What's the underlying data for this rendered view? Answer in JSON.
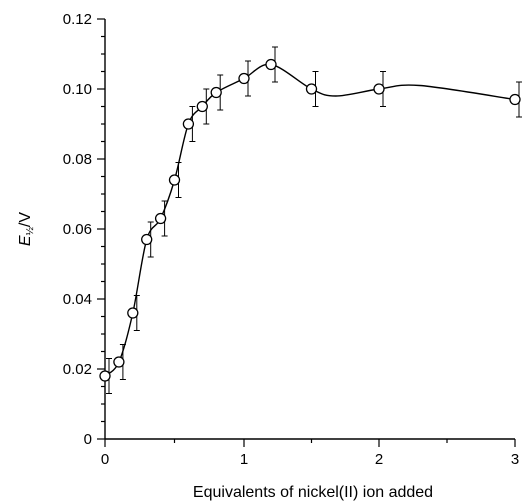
{
  "chart_data": {
    "type": "scatter",
    "title": "",
    "xlabel": "Equivalents of nickel(II) ion added",
    "ylabel_main": "E",
    "ylabel_sub": "½",
    "ylabel_unit": "/V",
    "xlim": [
      0,
      3
    ],
    "ylim": [
      0,
      0.12
    ],
    "x_ticks": [
      0,
      1,
      2,
      3
    ],
    "x_tick_labels": [
      "0",
      "1",
      "2",
      "3"
    ],
    "x_axis_breakpoints": [
      0,
      1,
      2,
      3
    ],
    "y_ticks": [
      0,
      0.02,
      0.04,
      0.06,
      0.08,
      0.1,
      0.12
    ],
    "y_tick_labels": [
      "0",
      "0.02",
      "0.04",
      "0.06",
      "0.08",
      "0.10",
      "0.12"
    ],
    "grid": false,
    "legend": "none",
    "error_bar": 0.005,
    "series": [
      {
        "x": [
          0,
          0.1,
          0.2,
          0.3,
          0.4,
          0.5,
          0.6,
          0.7,
          0.8,
          1.0,
          1.2,
          1.5,
          2.0,
          3.0
        ],
        "y": [
          0.018,
          0.022,
          0.036,
          0.057,
          0.063,
          0.074,
          0.09,
          0.095,
          0.099,
          0.103,
          0.107,
          0.1,
          0.1,
          0.097
        ]
      }
    ],
    "curve": {
      "x": [
        0,
        0.1,
        0.2,
        0.3,
        0.4,
        0.5,
        0.6,
        0.7,
        0.8,
        1.0,
        1.2,
        1.5,
        1.68,
        2.0,
        2.3,
        3.0
      ],
      "y": [
        0.018,
        0.022,
        0.036,
        0.057,
        0.063,
        0.074,
        0.09,
        0.095,
        0.099,
        0.103,
        0.107,
        0.1,
        0.098,
        0.1,
        0.101,
        0.097
      ]
    }
  }
}
